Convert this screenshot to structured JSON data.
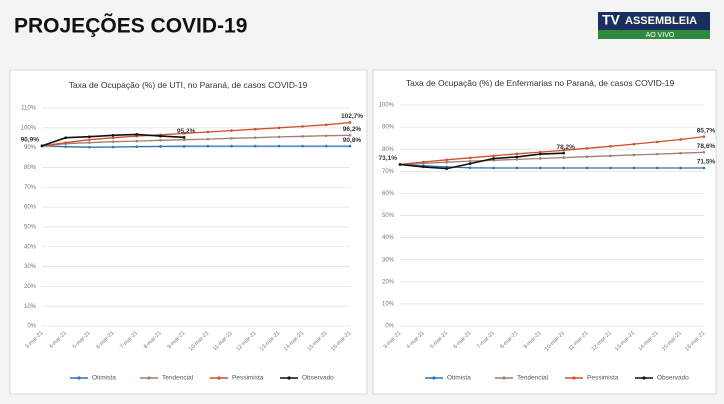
{
  "header": {
    "title": "PROJEÇÕES COVID-19",
    "logo": {
      "tv": "TV",
      "name": "ASSEMBLEIA",
      "sub": "AO VIVO"
    }
  },
  "chart_data": [
    {
      "type": "line",
      "title": "Taxa de Ocupação (%) de UTI, no Paraná, de casos COVID-19",
      "categories": [
        "3-mar-21",
        "4-mar-21",
        "5-mar-21",
        "6-mar-21",
        "7-mar-21",
        "8-mar-21",
        "9-mar-21",
        "10-mar-21",
        "11-mar-21",
        "12-mar-21",
        "13-mar-21",
        "14-mar-21",
        "15-mar-21",
        "16-mar-21"
      ],
      "ylim": [
        0,
        110
      ],
      "yticks": [
        {
          "value": 0,
          "label": "0%"
        },
        {
          "value": 10,
          "label": "10%"
        },
        {
          "value": 20,
          "label": "20%"
        },
        {
          "value": 30,
          "label": "30%"
        },
        {
          "value": 40,
          "label": "40%"
        },
        {
          "value": 50,
          "label": "50%"
        },
        {
          "value": 60,
          "label": "60%"
        },
        {
          "value": 70,
          "label": "70%"
        },
        {
          "value": 80,
          "label": "80%"
        },
        {
          "value": 90,
          "label": "90%"
        },
        {
          "value": 100,
          "label": "100%"
        },
        {
          "value": 110,
          "label": "110%"
        }
      ],
      "series": [
        {
          "name": "Otimista",
          "color": "#2e75b6",
          "values": [
            90.9,
            90.5,
            90.2,
            90.3,
            90.5,
            90.6,
            90.7,
            90.8,
            90.8,
            90.8,
            90.8,
            90.8,
            90.8,
            90.8
          ],
          "value_labels": [
            "90,9%",
            null,
            null,
            null,
            null,
            null,
            null,
            null,
            null,
            null,
            null,
            null,
            null,
            "90,8%"
          ]
        },
        {
          "name": "Tendencial",
          "color": "#a08070",
          "values": [
            90.9,
            92.0,
            92.5,
            93.0,
            93.3,
            93.7,
            94.0,
            94.3,
            94.7,
            95.0,
            95.4,
            95.7,
            96.0,
            96.2
          ],
          "value_labels": [
            null,
            null,
            null,
            null,
            null,
            null,
            null,
            null,
            null,
            null,
            null,
            null,
            null,
            "96,2%"
          ]
        },
        {
          "name": "Pessimista",
          "color": "#d0502d",
          "values": [
            90.9,
            92.5,
            94.0,
            95.0,
            95.8,
            96.5,
            97.2,
            97.9,
            98.6,
            99.3,
            100.0,
            100.7,
            101.5,
            102.7
          ],
          "value_labels": [
            null,
            null,
            null,
            null,
            null,
            null,
            null,
            null,
            null,
            null,
            null,
            null,
            null,
            "102,7%"
          ]
        },
        {
          "name": "Observado",
          "color": "#111111",
          "values": [
            90.9,
            95.0,
            95.5,
            96.2,
            96.7,
            95.8,
            95.2,
            null,
            null,
            null,
            null,
            null,
            null,
            null
          ],
          "value_labels": [
            null,
            null,
            null,
            null,
            null,
            null,
            "95,2%",
            null,
            null,
            null,
            null,
            null,
            null,
            null
          ]
        }
      ]
    },
    {
      "type": "line",
      "title": "Taxa de Ocupação (%) de Enfermarias no Paraná, de casos COVID-19",
      "categories": [
        "3-mar-21",
        "4-mar-21",
        "5-mar-21",
        "6-mar-21",
        "7-mar-21",
        "8-mar-21",
        "9-mar-21",
        "10-mar-21",
        "11-mar-21",
        "12-mar-21",
        "13-mar-21",
        "14-mar-21",
        "15-mar-21",
        "16-mar-21"
      ],
      "ylim": [
        0,
        100
      ],
      "yticks": [
        {
          "value": 0,
          "label": "0%"
        },
        {
          "value": 10,
          "label": "10%"
        },
        {
          "value": 20,
          "label": "20%"
        },
        {
          "value": 30,
          "label": "30%"
        },
        {
          "value": 40,
          "label": "40%"
        },
        {
          "value": 50,
          "label": "50%"
        },
        {
          "value": 60,
          "label": "60%"
        },
        {
          "value": 70,
          "label": "70%"
        },
        {
          "value": 80,
          "label": "80%"
        },
        {
          "value": 90,
          "label": "90%"
        },
        {
          "value": 100,
          "label": "100%"
        }
      ],
      "series": [
        {
          "name": "Otimista",
          "color": "#2e75b6",
          "values": [
            73.1,
            72.5,
            72.0,
            71.6,
            71.5,
            71.5,
            71.5,
            71.5,
            71.5,
            71.5,
            71.5,
            71.5,
            71.5,
            71.5
          ],
          "value_labels": [
            "73,1%",
            null,
            null,
            null,
            null,
            null,
            null,
            null,
            null,
            null,
            null,
            null,
            null,
            "71,5%"
          ]
        },
        {
          "name": "Tendencial",
          "color": "#a08070",
          "values": [
            73.1,
            73.6,
            74.1,
            74.6,
            75.0,
            75.4,
            75.8,
            76.2,
            76.6,
            77.0,
            77.4,
            77.8,
            78.2,
            78.6
          ],
          "value_labels": [
            null,
            null,
            null,
            null,
            null,
            null,
            null,
            null,
            null,
            null,
            null,
            null,
            null,
            "78,6%"
          ]
        },
        {
          "name": "Pessimista",
          "color": "#d0502d",
          "values": [
            73.1,
            74.2,
            75.2,
            76.1,
            77.0,
            77.9,
            78.7,
            79.5,
            80.4,
            81.3,
            82.3,
            83.3,
            84.4,
            85.7
          ],
          "value_labels": [
            null,
            null,
            null,
            null,
            null,
            null,
            null,
            null,
            null,
            null,
            null,
            null,
            null,
            "85,7%"
          ]
        },
        {
          "name": "Observado",
          "color": "#111111",
          "values": [
            73.1,
            72.0,
            71.2,
            73.5,
            75.8,
            76.5,
            77.8,
            78.2,
            null,
            null,
            null,
            null,
            null,
            null
          ],
          "value_labels": [
            null,
            null,
            null,
            null,
            null,
            null,
            null,
            "78,2%",
            null,
            null,
            null,
            null,
            null,
            null
          ]
        }
      ]
    }
  ]
}
